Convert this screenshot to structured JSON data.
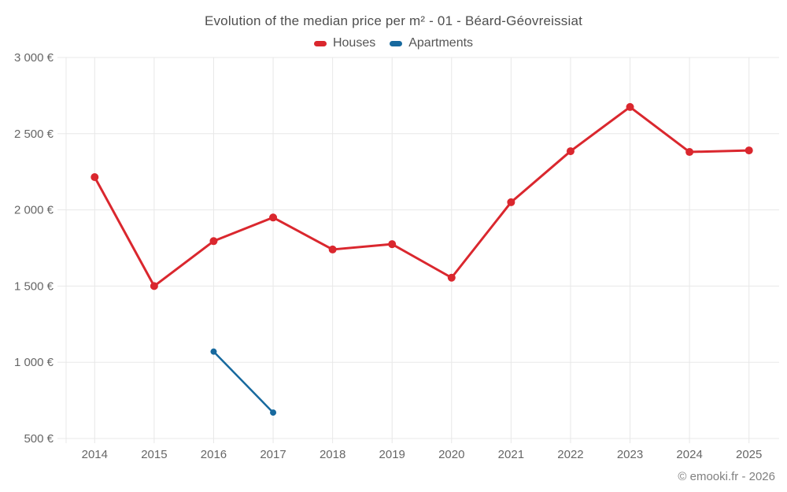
{
  "title": "Evolution of the median price per m² - 01 - Béard-Géovreissiat",
  "footer": "© emooki.fr - 2026",
  "colors": {
    "houses": "#da272e",
    "apartments": "#17699e",
    "grid": "#e8e8e8",
    "axis_text": "#666666",
    "title_text": "#4f4f4f"
  },
  "chart_data": {
    "type": "line",
    "x": [
      2014,
      2015,
      2016,
      2017,
      2018,
      2019,
      2020,
      2021,
      2022,
      2023,
      2024,
      2025
    ],
    "series": [
      {
        "name": "Houses",
        "color": "#da272e",
        "x": [
          2014,
          2015,
          2016,
          2017,
          2018,
          2019,
          2020,
          2021,
          2022,
          2023,
          2024,
          2025
        ],
        "values": [
          2215,
          1500,
          1795,
          1950,
          1740,
          1775,
          1555,
          2050,
          2385,
          2675,
          2380,
          2390
        ]
      },
      {
        "name": "Apartments",
        "color": "#17699e",
        "x": [
          2016,
          2017
        ],
        "values": [
          1070,
          670
        ]
      }
    ],
    "title": "Evolution of the median price per m² - 01 - Béard-Géovreissiat",
    "xlabel": "",
    "ylabel": "",
    "ylim": [
      500,
      3000
    ],
    "yticks": [
      500,
      1000,
      1500,
      2000,
      2500,
      3000
    ],
    "ytick_labels": [
      "500 €",
      "1 000 €",
      "1 500 €",
      "2 000 €",
      "2 500 €",
      "3 000 €"
    ],
    "xtick_labels": [
      "2014",
      "2015",
      "2016",
      "2017",
      "2018",
      "2019",
      "2020",
      "2021",
      "2022",
      "2023",
      "2024",
      "2025"
    ],
    "grid": true,
    "legend_position": "top"
  }
}
